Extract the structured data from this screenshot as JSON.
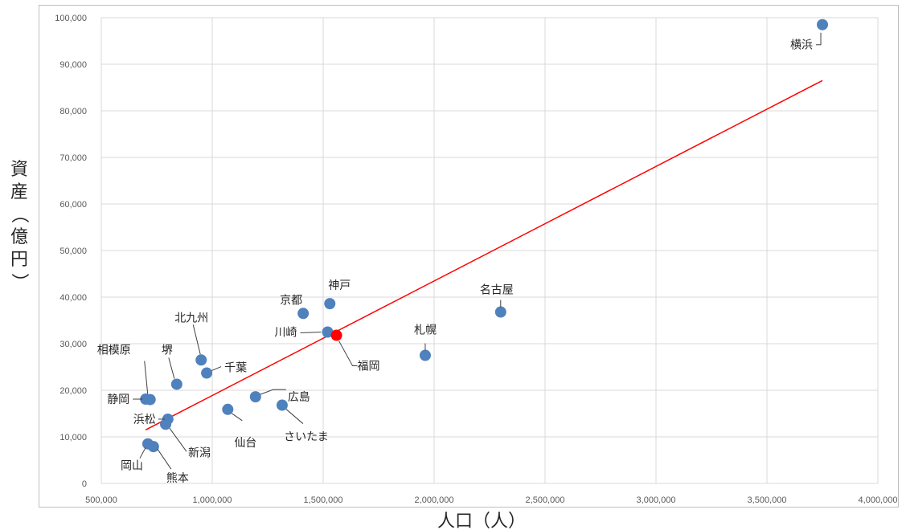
{
  "chart_data": {
    "type": "scatter",
    "title": "",
    "xlabel": "人口（人）",
    "ylabel": "資産（億円）",
    "xlim": [
      500000,
      4000000
    ],
    "ylim": [
      0,
      100000
    ],
    "x_ticks": [
      "500,000",
      "1,000,000",
      "1,500,000",
      "2,000,000",
      "2,500,000",
      "3,000,000",
      "3,500,000",
      "4,000,000"
    ],
    "y_ticks": [
      "0",
      "10,000",
      "20,000",
      "30,000",
      "40,000",
      "50,000",
      "60,000",
      "70,000",
      "80,000",
      "90,000",
      "100,000"
    ],
    "grid": true,
    "point_color": "#4f81bd",
    "highlight_color": "#ff0000",
    "trendline_color": "#ff0000",
    "trendline": {
      "x": [
        700000,
        3750000
      ],
      "y": [
        11500,
        86500
      ]
    },
    "points": [
      {
        "label": "横浜",
        "x": 3750000,
        "y": 98500
      },
      {
        "label": "名古屋",
        "x": 2300000,
        "y": 36800
      },
      {
        "label": "札幌",
        "x": 1960000,
        "y": 27500
      },
      {
        "label": "神戸",
        "x": 1530000,
        "y": 38600
      },
      {
        "label": "京都",
        "x": 1410000,
        "y": 36500
      },
      {
        "label": "川崎",
        "x": 1520000,
        "y": 32500
      },
      {
        "label": "福岡",
        "x": 1560000,
        "y": 31800,
        "highlight": true
      },
      {
        "label": "北九州",
        "x": 950000,
        "y": 26500
      },
      {
        "label": "千葉",
        "x": 975000,
        "y": 23700
      },
      {
        "label": "堺",
        "x": 840000,
        "y": 21300
      },
      {
        "label": "相模原",
        "x": 720000,
        "y": 18000
      },
      {
        "label": "静岡",
        "x": 700000,
        "y": 18100
      },
      {
        "label": "広島",
        "x": 1195000,
        "y": 18600
      },
      {
        "label": "さいたま",
        "x": 1315000,
        "y": 16800
      },
      {
        "label": "仙台",
        "x": 1070000,
        "y": 15900
      },
      {
        "label": "浜松",
        "x": 800000,
        "y": 13800
      },
      {
        "label": "新潟",
        "x": 790000,
        "y": 12700
      },
      {
        "label": "岡山",
        "x": 710000,
        "y": 8500
      },
      {
        "label": "熊本",
        "x": 735000,
        "y": 7900
      }
    ]
  }
}
